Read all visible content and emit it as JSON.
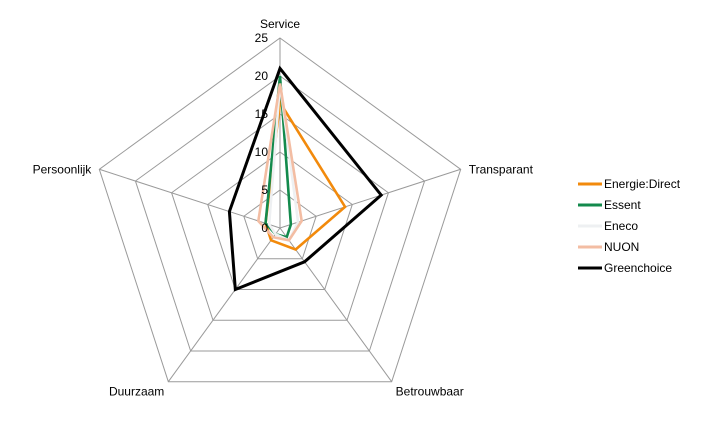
{
  "chart_data": {
    "type": "radar",
    "title": "",
    "axes": [
      "Service",
      "Transparant",
      "Betrouwbaar",
      "Duurzaam",
      "Persoonlijk"
    ],
    "ticks": [
      0,
      5,
      10,
      15,
      20,
      25
    ],
    "rlim": [
      0,
      25
    ],
    "grid": true,
    "legend_position": "right",
    "series": [
      {
        "name": "Energie:Direct",
        "color": "#f28a0c",
        "values": [
          16.5,
          9,
          3.5,
          2,
          2
        ]
      },
      {
        "name": "Essent",
        "color": "#138a4c",
        "values": [
          20,
          1.5,
          1.5,
          1,
          2
        ]
      },
      {
        "name": "Eneco",
        "color": "#eef0f2",
        "values": [
          19,
          2.5,
          2,
          1,
          1.5
        ]
      },
      {
        "name": "NUON",
        "color": "#f3bda3",
        "values": [
          19,
          3,
          2,
          1.5,
          3
        ]
      },
      {
        "name": "Greenchoice",
        "color": "#000000",
        "values": [
          21,
          14,
          5.5,
          10,
          7
        ]
      }
    ]
  }
}
